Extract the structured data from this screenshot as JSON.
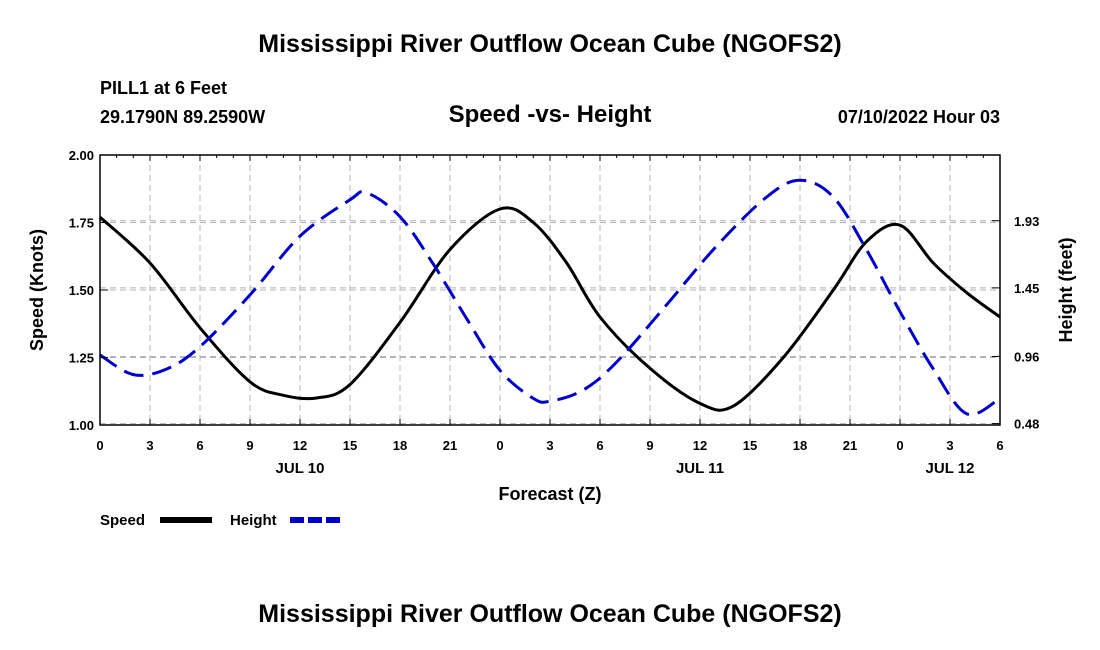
{
  "header": {
    "title_top": "Mississippi River Outflow Ocean Cube (NGOFS2)",
    "station": "PILL1 at 6 Feet",
    "coords": "29.1790N  89.2590W",
    "subtitle": "Speed -vs- Height",
    "datetime": "07/10/2022 Hour 03",
    "title_bottom": "Mississippi River Outflow Ocean Cube (NGOFS2)"
  },
  "chart_data": {
    "type": "line",
    "title": "Speed -vs- Height",
    "xlabel": "Forecast (Z)",
    "ylabel": "Speed (Knots)",
    "y2label": "Height (feet)",
    "xlim": [
      0,
      54
    ],
    "ylim": [
      1.0,
      2.0
    ],
    "y2lim": [
      0.47,
      2.4
    ],
    "x_ticks": [
      0,
      3,
      6,
      9,
      12,
      15,
      18,
      21,
      24,
      27,
      30,
      33,
      36,
      39,
      42,
      45,
      48,
      51,
      54
    ],
    "x_tick_labels": [
      "0",
      "3",
      "6",
      "9",
      "12",
      "15",
      "18",
      "21",
      "0",
      "3",
      "6",
      "9",
      "12",
      "15",
      "18",
      "21",
      "0",
      "3",
      "6"
    ],
    "date_labels": [
      {
        "x": 12,
        "label": "JUL 10"
      },
      {
        "x": 36,
        "label": "JUL 11"
      },
      {
        "x": 51,
        "label": "JUL 12"
      }
    ],
    "y_ticks": [
      1.0,
      1.25,
      1.5,
      1.75,
      2.0
    ],
    "y_tick_labels": [
      "1.00",
      "1.25",
      "1.50",
      "1.75",
      "2.00"
    ],
    "y2_ticks": [
      0.48,
      0.96,
      1.45,
      1.93
    ],
    "y2_tick_labels": [
      "0.48",
      "0.96",
      "1.45",
      "1.93"
    ],
    "grid": true,
    "series": [
      {
        "name": "Speed",
        "axis": "left",
        "color": "#000000",
        "dash": "solid",
        "x": [
          0,
          3,
          6,
          9,
          11,
          13,
          15,
          18,
          21,
          24,
          26,
          28,
          30,
          33,
          36,
          38,
          41,
          44,
          46,
          48,
          50,
          52,
          54
        ],
        "y": [
          1.77,
          1.6,
          1.36,
          1.16,
          1.11,
          1.1,
          1.15,
          1.38,
          1.65,
          1.8,
          1.75,
          1.6,
          1.4,
          1.21,
          1.08,
          1.07,
          1.25,
          1.5,
          1.68,
          1.74,
          1.6,
          1.49,
          1.4
        ]
      },
      {
        "name": "Height",
        "axis": "right",
        "color": "#0000cc",
        "dash": "dashed",
        "x": [
          0,
          2,
          4,
          6,
          9,
          12,
          15,
          16,
          18,
          20,
          22,
          24,
          26,
          27,
          29,
          31,
          34,
          37,
          40,
          42,
          44,
          46,
          48,
          50,
          52,
          54
        ],
        "y": [
          0.97,
          0.83,
          0.87,
          1.03,
          1.4,
          1.82,
          2.08,
          2.13,
          1.96,
          1.62,
          1.23,
          0.86,
          0.66,
          0.64,
          0.72,
          0.92,
          1.33,
          1.75,
          2.1,
          2.22,
          2.1,
          1.72,
          1.28,
          0.87,
          0.55,
          0.66
        ]
      }
    ],
    "legend": [
      {
        "label": "Speed",
        "color": "#000000",
        "dash": "solid"
      },
      {
        "label": "Height",
        "color": "#0000cc",
        "dash": "dashed"
      }
    ]
  }
}
